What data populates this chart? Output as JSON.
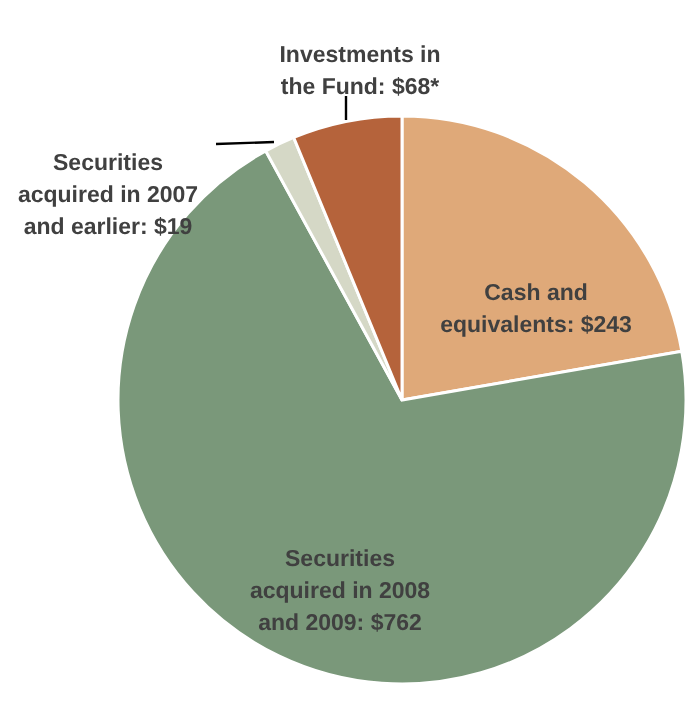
{
  "chart_data": {
    "type": "pie",
    "categories": [
      "Cash and equivalents: $243",
      "Securities acquired in 2008 and 2009: $762",
      "Securities acquired in 2007 and earlier: $19",
      "Investments in the Fund: $68*"
    ],
    "values": [
      243,
      762,
      19,
      68
    ],
    "colors": [
      "#dfa979",
      "#7a987a",
      "#d5d8c6",
      "#b5633b"
    ]
  }
}
